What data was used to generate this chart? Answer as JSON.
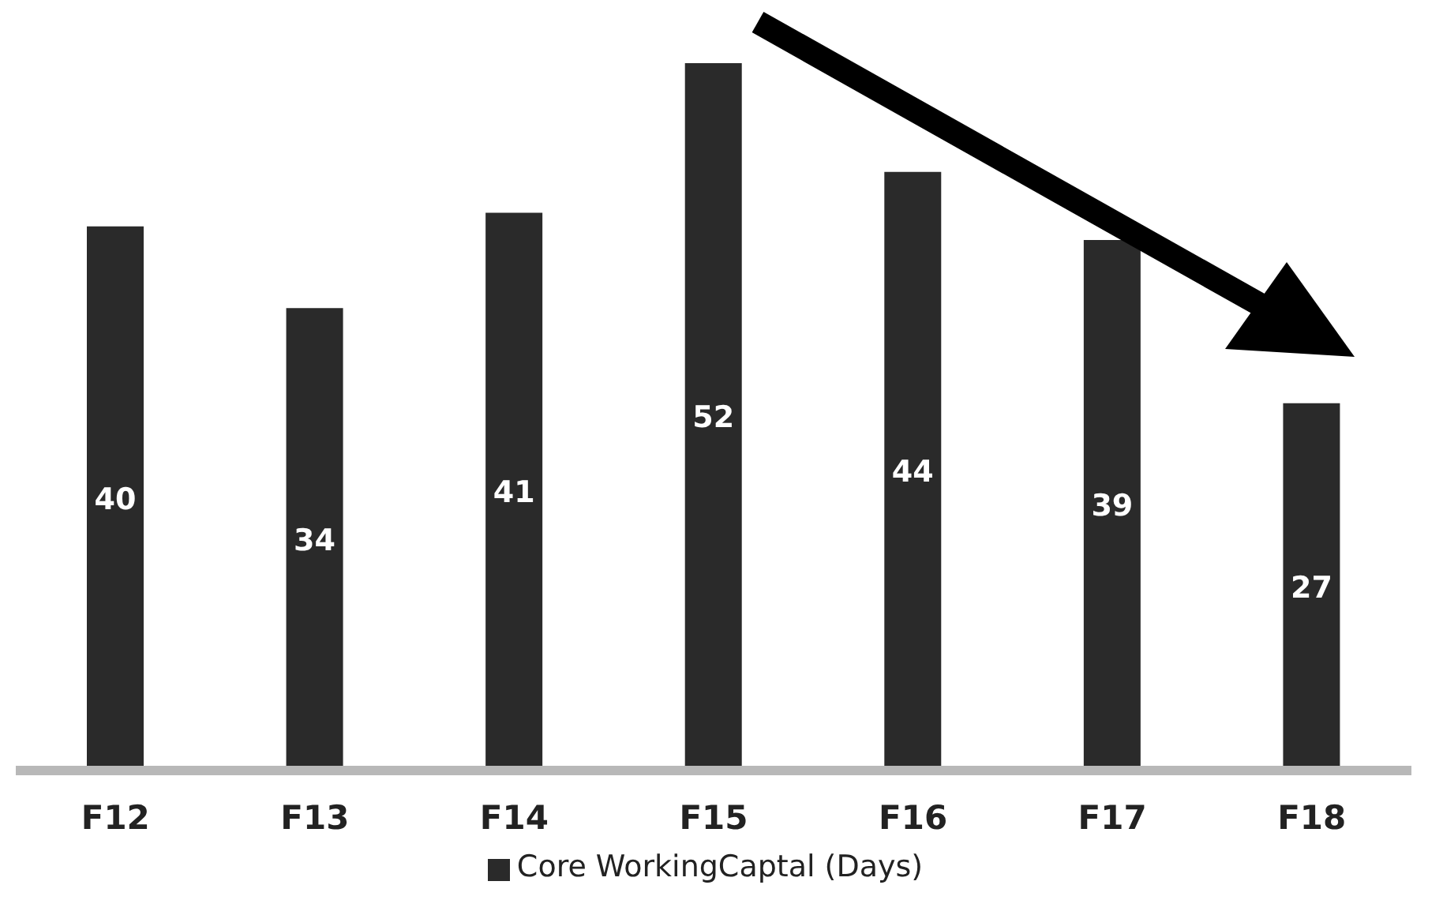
{
  "chart_data": {
    "type": "bar",
    "categories": [
      "F12",
      "F13",
      "F14",
      "F15",
      "F16",
      "F17",
      "F18"
    ],
    "series": [
      {
        "name": "Core WorkingCaptal (Days)",
        "color": "#2a2a2a",
        "values": [
          40,
          34,
          41,
          52,
          44,
          39,
          27
        ]
      }
    ],
    "data_labels": true,
    "legend": "bottom"
  }
}
